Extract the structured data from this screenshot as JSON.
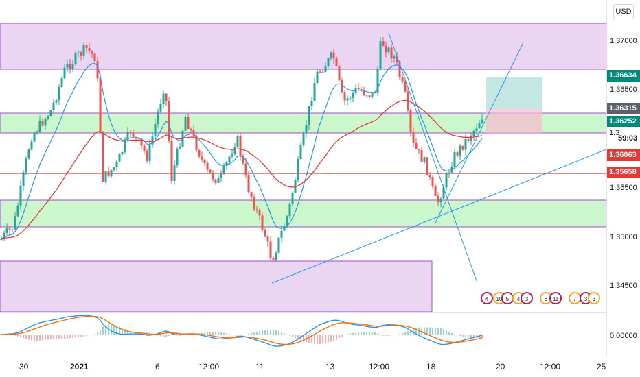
{
  "price_scale": {
    "currency": "USD",
    "ticks": [
      "1.37000",
      "1.36500",
      "1.35500",
      "1.35000",
      "1.34500"
    ],
    "osc_tick": "0.00000"
  },
  "price_labels": [
    {
      "text": "1.36634",
      "color": "#00897b"
    },
    {
      "text": "1.36315",
      "color": "#5d606b"
    },
    {
      "text": "1.36252",
      "color": "#00897b"
    },
    {
      "text": "1.3",
      "color": "#ffffff",
      "text_color": "#131722"
    },
    {
      "text": "59:03",
      "color": "#ffffff",
      "text_color": "#131722"
    },
    {
      "text": "1.36063",
      "color": "#e53935"
    },
    {
      "text": "1.35658",
      "color": "#e53935"
    }
  ],
  "time_axis": {
    "labels": [
      {
        "text": "30",
        "bold": false
      },
      {
        "text": "2021",
        "bold": true
      },
      {
        "text": "6",
        "bold": false
      },
      {
        "text": "12:00",
        "bold": false
      },
      {
        "text": "11",
        "bold": false
      },
      {
        "text": "13",
        "bold": false
      },
      {
        "text": "12:00",
        "bold": false
      },
      {
        "text": "18",
        "bold": false
      },
      {
        "text": "20",
        "bold": false
      },
      {
        "text": "12:00",
        "bold": false
      },
      {
        "text": "25",
        "bold": false
      }
    ]
  },
  "events": [
    "4",
    "10",
    "5",
    "4",
    "3",
    "6",
    "11",
    "7",
    "3",
    "3"
  ],
  "colors": {
    "bull": "#26a69a",
    "bear": "#ef5350",
    "ma_fast": "#2196f3",
    "ma_slow": "#e53935",
    "zone_purple": "#e6cff0",
    "zone_green": "#ccf5cc",
    "macd_line": "#2196f3",
    "signal_line": "#ff6d00"
  }
}
